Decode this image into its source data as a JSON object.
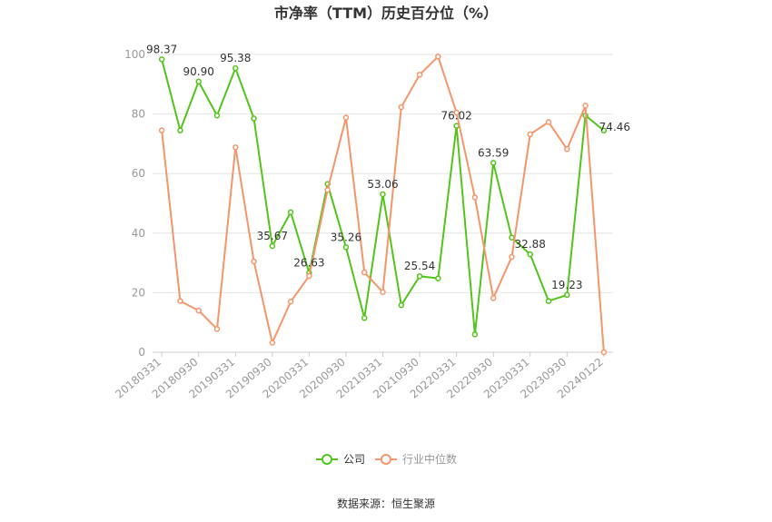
{
  "chart_data": {
    "type": "line",
    "title": "市净率（TTM）历史百分位（%）",
    "source": "数据来源：恒生聚源",
    "ylim": [
      0,
      100
    ],
    "yticks": [
      0,
      20,
      40,
      60,
      80,
      100
    ],
    "grid": true,
    "legend_position": "bottom",
    "categories": [
      "20180331",
      "20180630",
      "20180930",
      "20181231",
      "20190331",
      "20190630",
      "20190930",
      "20191231",
      "20200331",
      "20200630",
      "20200930",
      "20201231",
      "20210331",
      "20210630",
      "20210930",
      "20211231",
      "20220331",
      "20220630",
      "20220930",
      "20221231",
      "20230331",
      "20230630",
      "20230930",
      "20231231",
      "20240122"
    ],
    "tick_labels": [
      "20180331",
      "20180930",
      "20190331",
      "20190930",
      "20200331",
      "20200930",
      "20210331",
      "20210930",
      "20220331",
      "20220930",
      "20230331",
      "20230930",
      "20240122"
    ],
    "series": [
      {
        "name": "公司",
        "color": "#52c41a",
        "values": [
          98.37,
          74.5,
          90.9,
          79.5,
          95.38,
          78.5,
          35.67,
          47.0,
          26.63,
          56.5,
          35.26,
          11.5,
          53.06,
          15.8,
          25.54,
          24.8,
          76.02,
          6.0,
          63.59,
          38.5,
          32.88,
          17.2,
          19.23,
          79.5,
          74.46
        ],
        "labels": {
          "0": "98.37",
          "2": "90.90",
          "4": "95.38",
          "6": "35.67",
          "8": "26.63",
          "10": "35.26",
          "12": "53.06",
          "14": "25.54",
          "16": "76.02",
          "18": "63.59",
          "20": "32.88",
          "22": "19.23",
          "24": "74.46"
        }
      },
      {
        "name": "行业中位数",
        "color": "#f4956a",
        "values": [
          74.5,
          17.2,
          14.0,
          7.8,
          68.8,
          30.5,
          3.2,
          17.0,
          25.6,
          54.5,
          78.8,
          26.8,
          20.2,
          82.3,
          93.2,
          99.3,
          80.5,
          52.0,
          18.2,
          32.0,
          73.2,
          77.3,
          68.2,
          82.8,
          0.0
        ]
      }
    ]
  }
}
